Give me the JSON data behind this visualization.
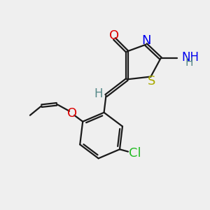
{
  "background_color": "#efefef",
  "bond_color": "#1a1a1a",
  "bond_lw": 1.6,
  "atom_colors": {
    "O": "#dd0000",
    "N": "#0000ee",
    "S": "#aaaa00",
    "Cl": "#22bb22",
    "H_grey": "#558888",
    "NH_blue": "#0000ee",
    "C": "#1a1a1a"
  }
}
